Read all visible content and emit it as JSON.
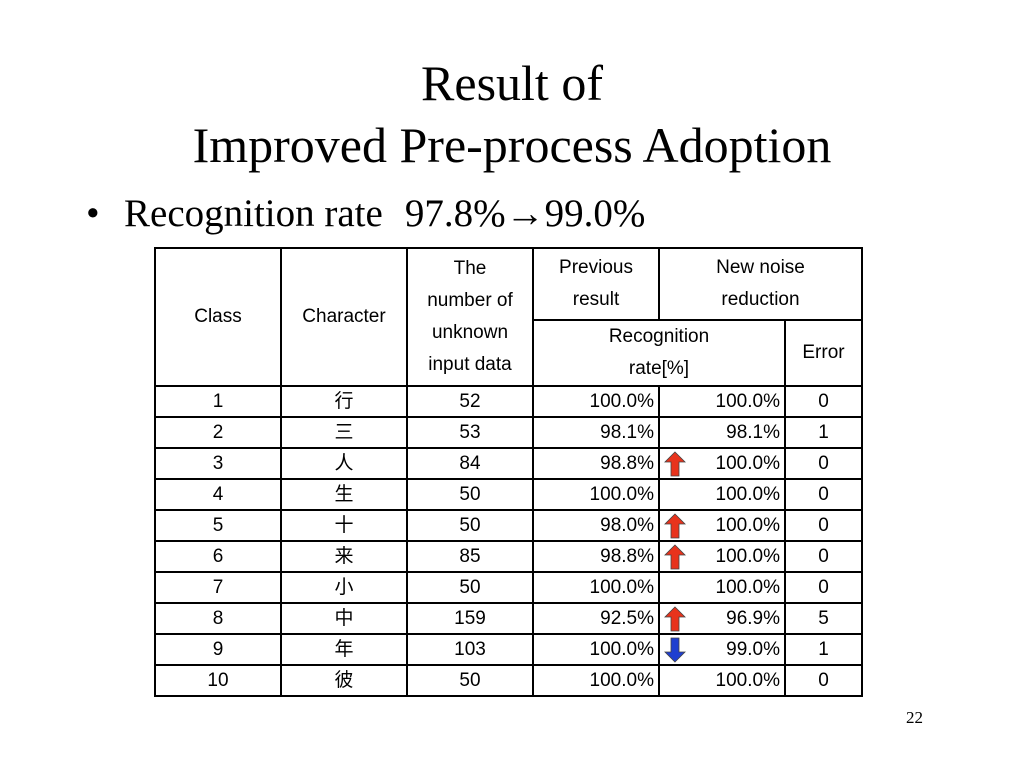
{
  "slide": {
    "title_line1": "Result of",
    "title_line2": "Improved Pre-process Adoption",
    "bullet_char": "•",
    "bullet_label": "Recognition rate",
    "bullet_value": "97.8%→99.0%",
    "page_number": "22"
  },
  "table": {
    "headers": {
      "class": "Class",
      "character": "Character",
      "unknown_line1": "The",
      "unknown_line2": "number of",
      "unknown_line3": "unknown",
      "unknown_line4": "input data",
      "previous_line1": "Previous",
      "previous_line2": "result",
      "new_line1": "New noise",
      "new_line2": "reduction",
      "rate_line1": "Recognition",
      "rate_line2": "rate[%]",
      "error": "Error"
    },
    "rows": [
      {
        "class": "1",
        "character": "行",
        "unknown": "52",
        "previous": "100.0%",
        "arrow": "none",
        "new_rate": "100.0%",
        "error": "0"
      },
      {
        "class": "2",
        "character": "三",
        "unknown": "53",
        "previous": "98.1%",
        "arrow": "none",
        "new_rate": "98.1%",
        "error": "1"
      },
      {
        "class": "3",
        "character": "人",
        "unknown": "84",
        "previous": "98.8%",
        "arrow": "up",
        "new_rate": "100.0%",
        "error": "0"
      },
      {
        "class": "4",
        "character": "生",
        "unknown": "50",
        "previous": "100.0%",
        "arrow": "none",
        "new_rate": "100.0%",
        "error": "0"
      },
      {
        "class": "5",
        "character": "十",
        "unknown": "50",
        "previous": "98.0%",
        "arrow": "up",
        "new_rate": "100.0%",
        "error": "0"
      },
      {
        "class": "6",
        "character": "来",
        "unknown": "85",
        "previous": "98.8%",
        "arrow": "up",
        "new_rate": "100.0%",
        "error": "0"
      },
      {
        "class": "7",
        "character": "小",
        "unknown": "50",
        "previous": "100.0%",
        "arrow": "none",
        "new_rate": "100.0%",
        "error": "0"
      },
      {
        "class": "8",
        "character": "中",
        "unknown": "159",
        "previous": "92.5%",
        "arrow": "up",
        "new_rate": "96.9%",
        "error": "5"
      },
      {
        "class": "9",
        "character": "年",
        "unknown": "103",
        "previous": "100.0%",
        "arrow": "down",
        "new_rate": "99.0%",
        "error": "1"
      },
      {
        "class": "10",
        "character": "彼",
        "unknown": "50",
        "previous": "100.0%",
        "arrow": "none",
        "new_rate": "100.0%",
        "error": "0"
      }
    ],
    "colors": {
      "up_arrow": "#e8331c",
      "down_arrow": "#1f3fd0",
      "border": "#000000"
    },
    "icons": {
      "up": "up-arrow-icon",
      "down": "down-arrow-icon"
    }
  }
}
